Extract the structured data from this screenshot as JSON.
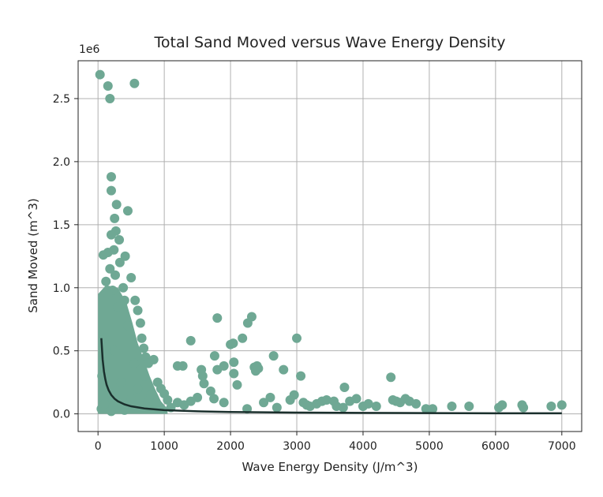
{
  "chart_data": {
    "type": "scatter",
    "title": "Total Sand Moved versus Wave Energy Density",
    "xlabel": "Wave Energy Density (J/m^3)",
    "ylabel": "Sand Moved (m^3)",
    "y_offset_label": "1e6",
    "xlim": [
      -300,
      7300
    ],
    "ylim": [
      -140000,
      2800000
    ],
    "xticks": [
      0,
      1000,
      2000,
      3000,
      4000,
      5000,
      6000,
      7000
    ],
    "xtick_labels": [
      "0",
      "1000",
      "2000",
      "3000",
      "4000",
      "5000",
      "6000",
      "7000"
    ],
    "yticks": [
      0,
      500000,
      1000000,
      1500000,
      2000000,
      2500000
    ],
    "ytick_labels": [
      "0.0",
      "0.5",
      "1.0",
      "1.5",
      "2.0",
      "2.5"
    ],
    "grid": true,
    "scatter_color": "#6fa894",
    "line_color": "#1a2f2c",
    "series": [
      {
        "kind": "scatter",
        "points": [
          [
            30,
            2690000
          ],
          [
            150,
            2600000
          ],
          [
            180,
            2500000
          ],
          [
            550,
            2620000
          ],
          [
            200,
            1880000
          ],
          [
            200,
            1770000
          ],
          [
            280,
            1660000
          ],
          [
            250,
            1550000
          ],
          [
            450,
            1610000
          ],
          [
            270,
            1450000
          ],
          [
            200,
            1420000
          ],
          [
            320,
            1380000
          ],
          [
            240,
            1300000
          ],
          [
            80,
            1260000
          ],
          [
            150,
            1280000
          ],
          [
            410,
            1250000
          ],
          [
            330,
            1200000
          ],
          [
            180,
            1150000
          ],
          [
            260,
            1100000
          ],
          [
            500,
            1080000
          ],
          [
            120,
            1050000
          ],
          [
            380,
            1000000
          ],
          [
            220,
            980000
          ],
          [
            560,
            900000
          ],
          [
            600,
            820000
          ],
          [
            640,
            720000
          ],
          [
            660,
            600000
          ],
          [
            690,
            520000
          ],
          [
            720,
            450000
          ],
          [
            760,
            400000
          ],
          [
            840,
            430000
          ],
          [
            900,
            250000
          ],
          [
            950,
            200000
          ],
          [
            1000,
            160000
          ],
          [
            1050,
            110000
          ],
          [
            880,
            80000
          ],
          [
            1200,
            380000
          ],
          [
            1280,
            380000
          ],
          [
            1400,
            580000
          ],
          [
            1560,
            350000
          ],
          [
            1580,
            300000
          ],
          [
            1700,
            180000
          ],
          [
            1760,
            460000
          ],
          [
            1800,
            760000
          ],
          [
            1800,
            350000
          ],
          [
            1900,
            380000
          ],
          [
            2000,
            550000
          ],
          [
            2040,
            560000
          ],
          [
            2050,
            410000
          ],
          [
            2050,
            320000
          ],
          [
            2100,
            230000
          ],
          [
            2180,
            600000
          ],
          [
            2260,
            720000
          ],
          [
            2320,
            770000
          ],
          [
            2360,
            370000
          ],
          [
            2380,
            340000
          ],
          [
            2400,
            380000
          ],
          [
            2420,
            360000
          ],
          [
            2650,
            460000
          ],
          [
            2800,
            350000
          ],
          [
            2960,
            150000
          ],
          [
            3000,
            600000
          ],
          [
            3060,
            300000
          ],
          [
            3100,
            90000
          ],
          [
            3200,
            60000
          ],
          [
            3300,
            80000
          ],
          [
            3380,
            100000
          ],
          [
            3450,
            110000
          ],
          [
            3560,
            100000
          ],
          [
            3600,
            60000
          ],
          [
            3720,
            210000
          ],
          [
            3800,
            100000
          ],
          [
            3900,
            120000
          ],
          [
            4000,
            60000
          ],
          [
            4080,
            80000
          ],
          [
            4200,
            60000
          ],
          [
            4420,
            290000
          ],
          [
            4450,
            110000
          ],
          [
            4500,
            100000
          ],
          [
            4560,
            90000
          ],
          [
            4640,
            120000
          ],
          [
            4700,
            100000
          ],
          [
            4800,
            80000
          ],
          [
            4950,
            40000
          ],
          [
            5050,
            40000
          ],
          [
            5340,
            60000
          ],
          [
            5600,
            60000
          ],
          [
            6050,
            50000
          ],
          [
            6100,
            70000
          ],
          [
            6400,
            70000
          ],
          [
            6420,
            50000
          ],
          [
            6840,
            60000
          ],
          [
            7000,
            70000
          ],
          [
            2250,
            40000
          ],
          [
            2500,
            90000
          ],
          [
            2700,
            50000
          ],
          [
            1500,
            130000
          ],
          [
            1400,
            100000
          ],
          [
            1300,
            70000
          ],
          [
            1200,
            90000
          ],
          [
            1100,
            50000
          ],
          [
            1600,
            240000
          ],
          [
            1750,
            120000
          ],
          [
            1900,
            90000
          ],
          [
            2600,
            130000
          ],
          [
            2900,
            110000
          ],
          [
            3150,
            70000
          ],
          [
            3700,
            50000
          ],
          [
            50,
            40000
          ],
          [
            100,
            80000
          ],
          [
            300,
            60000
          ],
          [
            500,
            120000
          ],
          [
            600,
            200000
          ],
          [
            700,
            300000
          ],
          [
            800,
            150000
          ],
          [
            400,
            30000
          ],
          [
            200,
            20000
          ],
          [
            650,
            60000
          ],
          [
            750,
            90000
          ],
          [
            350,
            250000
          ],
          [
            450,
            700000
          ],
          [
            300,
            850000
          ],
          [
            150,
            950000
          ],
          [
            100,
            600000
          ],
          [
            60,
            300000
          ],
          [
            250,
            500000
          ],
          [
            550,
            400000
          ],
          [
            400,
            900000
          ]
        ]
      },
      {
        "kind": "line",
        "x": [
          50,
          70,
          90,
          110,
          130,
          160,
          200,
          250,
          300,
          400,
          500,
          700,
          1000,
          1500,
          2000,
          3000,
          4000,
          5000,
          6000,
          7000
        ],
        "y": [
          600000,
          430000,
          335000,
          275000,
          230000,
          188000,
          150000,
          120000,
          100000,
          75000,
          60000,
          43000,
          30000,
          20000,
          15000,
          10000,
          7500,
          6000,
          5000,
          4300
        ]
      }
    ]
  }
}
